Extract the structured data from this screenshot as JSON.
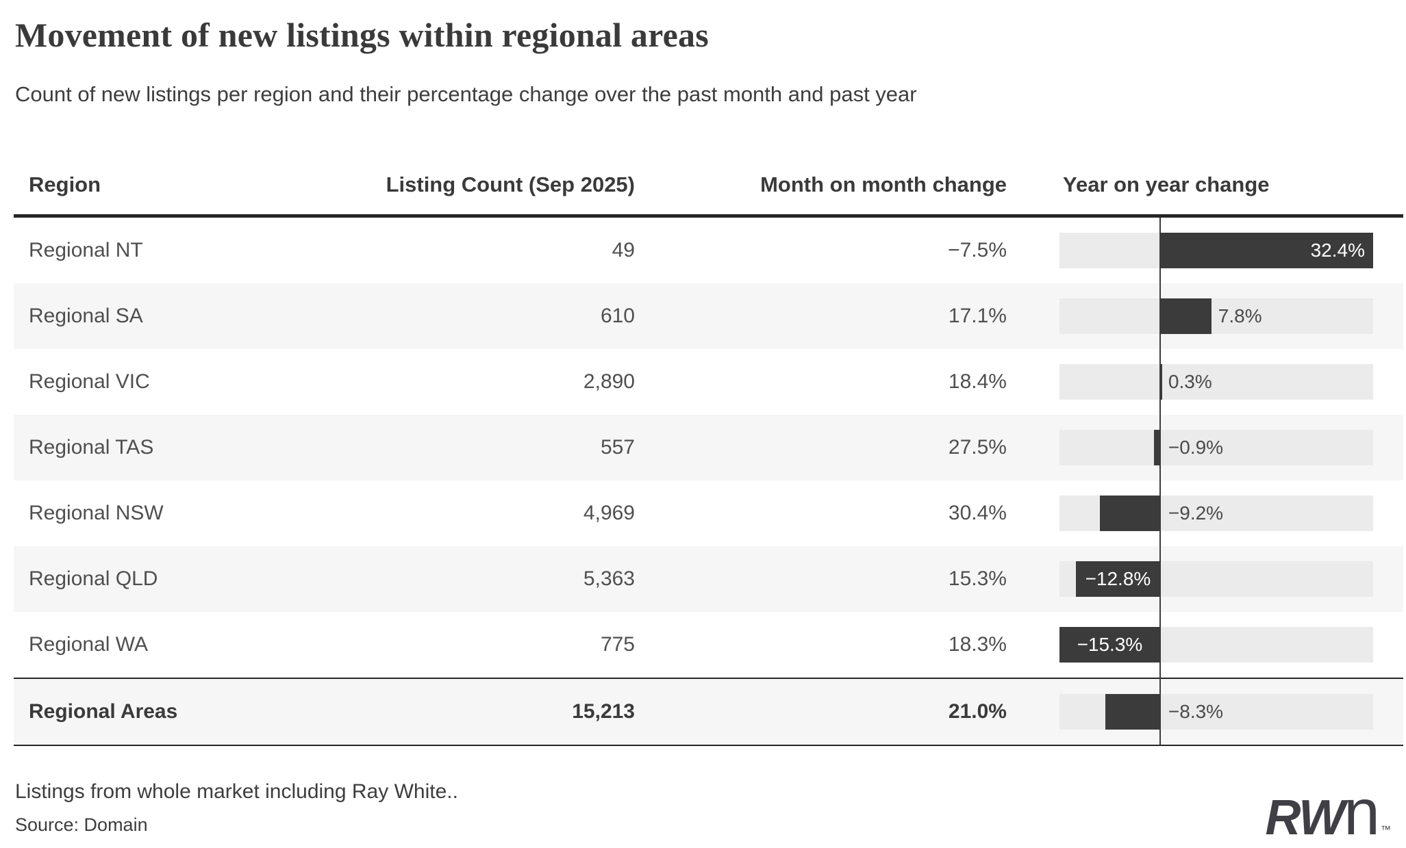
{
  "header": {
    "title": "Movement of new listings within regional areas",
    "subtitle": "Count of new listings per region and their percentage change over the past month and past year"
  },
  "table": {
    "columns": [
      "Region",
      "Listing Count (Sep 2025)",
      "Month on month change",
      "Year on year change"
    ]
  },
  "chart_data": {
    "type": "table",
    "description": "Table with in-cell horizontal bar chart for year-on-year change",
    "bar_axis": {
      "min": -15.3,
      "max": 32.4,
      "zero_line": true,
      "unit": "%"
    },
    "columns": [
      "Region",
      "Listing Count (Sep 2025)",
      "Month on month change",
      "Year on year change"
    ],
    "rows": [
      {
        "region": "Regional NT",
        "count": 49,
        "count_label": "49",
        "mom": -7.5,
        "mom_label": "−7.5%",
        "yoy": 32.4,
        "yoy_label": "32.4%",
        "label_placement": "inside-end",
        "bold": false
      },
      {
        "region": "Regional SA",
        "count": 610,
        "count_label": "610",
        "mom": 17.1,
        "mom_label": "17.1%",
        "yoy": 7.8,
        "yoy_label": "7.8%",
        "label_placement": "after-bar",
        "bold": false
      },
      {
        "region": "Regional VIC",
        "count": 2890,
        "count_label": "2,890",
        "mom": 18.4,
        "mom_label": "18.4%",
        "yoy": 0.3,
        "yoy_label": "0.3%",
        "label_placement": "after-zero",
        "bold": false
      },
      {
        "region": "Regional TAS",
        "count": 557,
        "count_label": "557",
        "mom": 27.5,
        "mom_label": "27.5%",
        "yoy": -0.9,
        "yoy_label": "−0.9%",
        "label_placement": "after-zero",
        "bold": false
      },
      {
        "region": "Regional NSW",
        "count": 4969,
        "count_label": "4,969",
        "mom": 30.4,
        "mom_label": "30.4%",
        "yoy": -9.2,
        "yoy_label": "−9.2%",
        "label_placement": "after-zero",
        "bold": false
      },
      {
        "region": "Regional QLD",
        "count": 5363,
        "count_label": "5,363",
        "mom": 15.3,
        "mom_label": "15.3%",
        "yoy": -12.8,
        "yoy_label": "−12.8%",
        "label_placement": "inside",
        "bold": false
      },
      {
        "region": "Regional WA",
        "count": 775,
        "count_label": "775",
        "mom": 18.3,
        "mom_label": "18.3%",
        "yoy": -15.3,
        "yoy_label": "−15.3%",
        "label_placement": "inside",
        "bold": false
      },
      {
        "region": "Regional Areas",
        "count": 15213,
        "count_label": "15,213",
        "mom": 21.0,
        "mom_label": "21.0%",
        "yoy": -8.3,
        "yoy_label": "−8.3%",
        "label_placement": "after-zero",
        "bold": true
      }
    ]
  },
  "footer": {
    "note": "Listings from whole market including Ray White..",
    "source": "Source: Domain"
  },
  "logo": {
    "rw": "RW",
    "n": "n",
    "tm": "™"
  },
  "colors": {
    "bar": "#3b3b3b",
    "track": "#ebebeb",
    "alt_row": "#f6f6f6",
    "rule": "#262626",
    "text_dark": "#3a3a3a",
    "text": "#4f4f4f",
    "bar_label_white": "#ffffff"
  }
}
